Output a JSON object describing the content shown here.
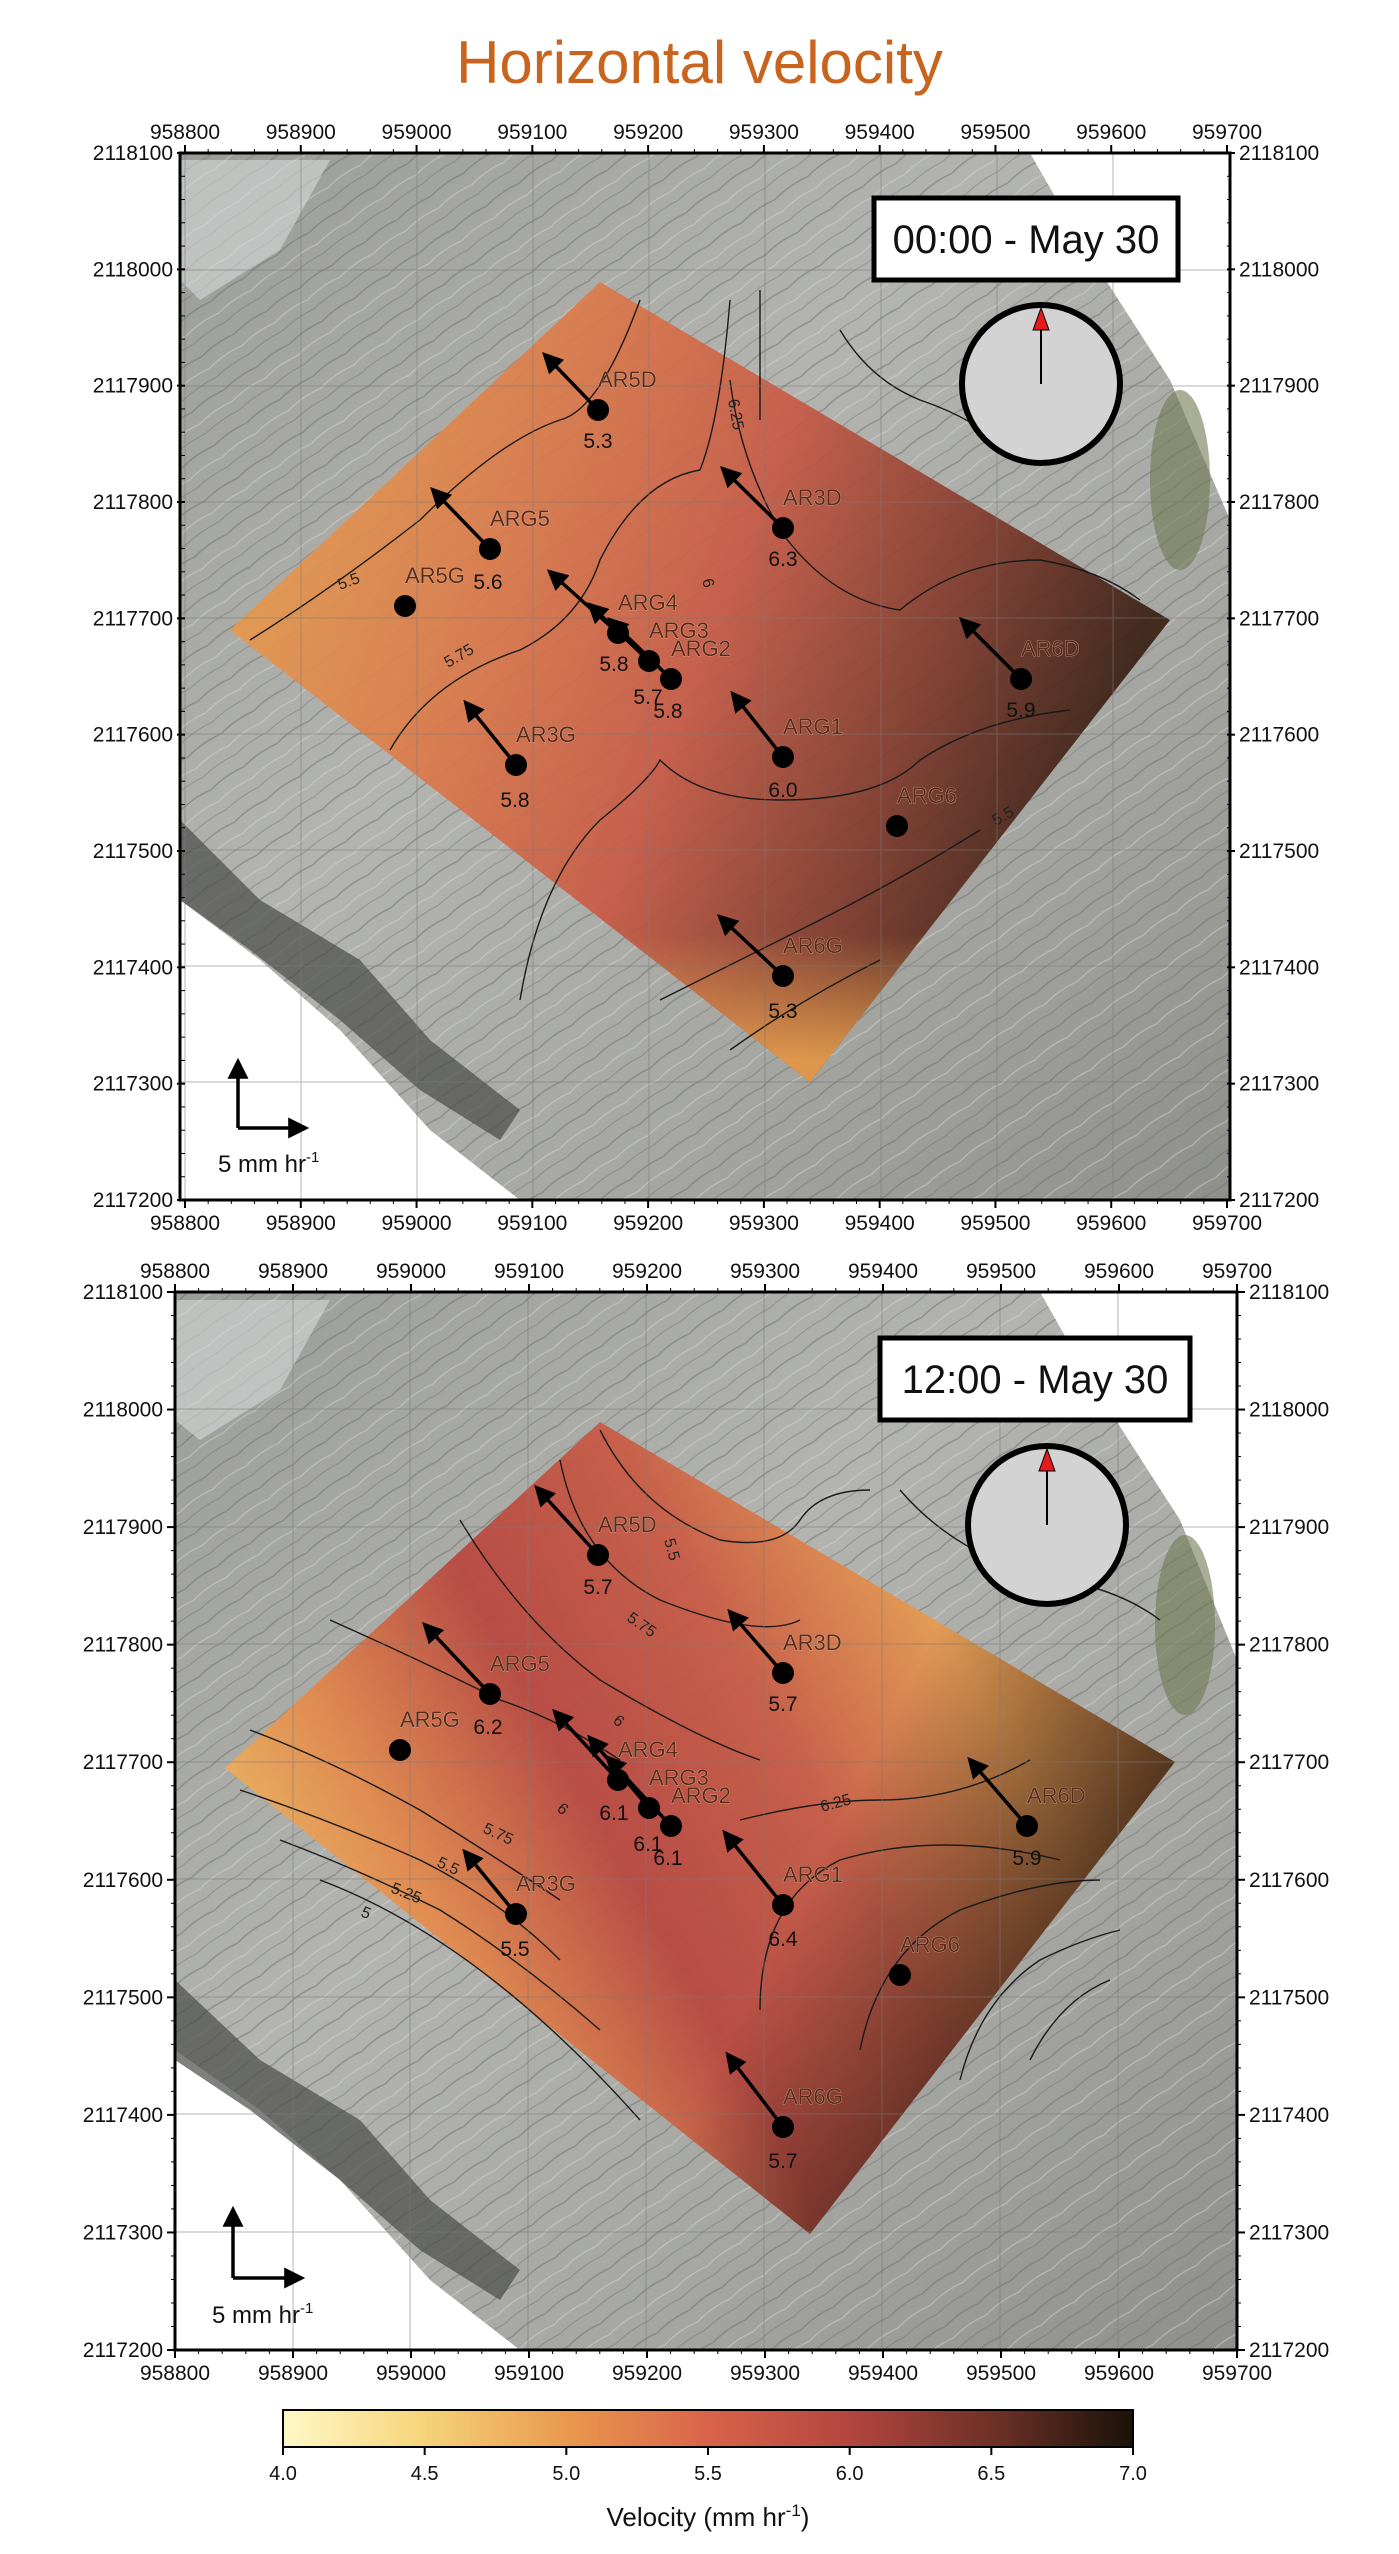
{
  "title": "Horizontal velocity",
  "x_ticks": [
    "958800",
    "958900",
    "959000",
    "959100",
    "959200",
    "959300",
    "959400",
    "959500",
    "959600",
    "959700"
  ],
  "y_ticks": [
    "2118100",
    "2118000",
    "2117900",
    "2117800",
    "2117700",
    "2117600",
    "2117500",
    "2117400",
    "2117300",
    "2117200"
  ],
  "scale_bar": {
    "label": "5 mm hr",
    "superscript": "-1",
    "length_mm_hr": 5
  },
  "colorbar": {
    "title": "Velocity (mm hr",
    "title_sup": "-1",
    "title_close": ")",
    "ticks": [
      "4.0",
      "4.5",
      "5.0",
      "5.5",
      "6.0",
      "6.5",
      "7.0"
    ],
    "min": 4.0,
    "max": 7.0,
    "colors": [
      "#fff8c8",
      "#f2c766",
      "#e99a4e",
      "#d9634a",
      "#b2453f",
      "#6b3026",
      "#1a1208"
    ]
  },
  "panels": [
    {
      "time_label": "00:00 - May 30",
      "stations": [
        {
          "name": "AR5D",
          "value": "5.3"
        },
        {
          "name": "ARG5",
          "value": "5.6"
        },
        {
          "name": "AR5G",
          "value": ""
        },
        {
          "name": "ARG4",
          "value": "5.8"
        },
        {
          "name": "ARG3",
          "value": "5.7"
        },
        {
          "name": "ARG2",
          "value": "5.8"
        },
        {
          "name": "AR3D",
          "value": "6.3"
        },
        {
          "name": "AR6D",
          "value": "5.9"
        },
        {
          "name": "AR3G",
          "value": "5.8"
        },
        {
          "name": "ARG1",
          "value": "6.0"
        },
        {
          "name": "ARG6",
          "value": ""
        },
        {
          "name": "AR6G",
          "value": "5.3"
        }
      ],
      "contour_labels": [
        "6.25",
        "6",
        "5.5",
        "5.75",
        "5.5"
      ]
    },
    {
      "time_label": "12:00 - May 30",
      "stations": [
        {
          "name": "AR5D",
          "value": "5.7"
        },
        {
          "name": "ARG5",
          "value": "6.2"
        },
        {
          "name": "AR5G",
          "value": ""
        },
        {
          "name": "ARG4",
          "value": "6.1"
        },
        {
          "name": "ARG3",
          "value": "6.1"
        },
        {
          "name": "ARG2",
          "value": "6.1"
        },
        {
          "name": "AR3D",
          "value": "5.7"
        },
        {
          "name": "AR6D",
          "value": "5.9"
        },
        {
          "name": "AR3G",
          "value": "5.5"
        },
        {
          "name": "ARG1",
          "value": "6.4"
        },
        {
          "name": "ARG6",
          "value": ""
        },
        {
          "name": "AR6G",
          "value": "5.7"
        }
      ],
      "contour_labels": [
        "5.5",
        "5.75",
        "6",
        "6",
        "6.25",
        "5.75",
        "5.5",
        "5.25",
        "5"
      ]
    }
  ]
}
